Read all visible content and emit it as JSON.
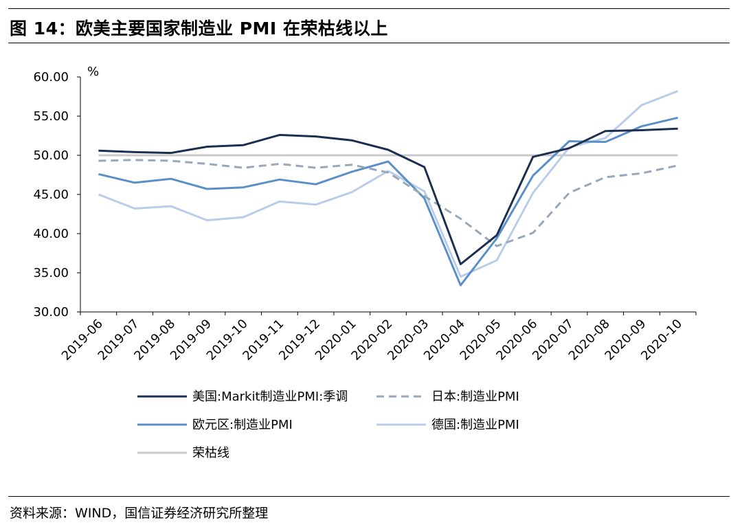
{
  "header": {
    "title": "图 14：欧美主要国家制造业 PMI 在荣枯线以上"
  },
  "footer": {
    "source": "资料来源：WIND，国信证券经济研究所整理"
  },
  "chart_data": {
    "type": "line",
    "ylabel": "%",
    "ylim": [
      30,
      60
    ],
    "yticks": [
      "30.00",
      "35.00",
      "40.00",
      "45.00",
      "50.00",
      "55.00",
      "60.00"
    ],
    "categories": [
      "2019-06",
      "2019-07",
      "2019-08",
      "2019-09",
      "2019-10",
      "2019-11",
      "2019-12",
      "2020-01",
      "2020-02",
      "2020-03",
      "2020-04",
      "2020-05",
      "2020-06",
      "2020-07",
      "2020-08",
      "2020-09",
      "2020-10"
    ],
    "grid": false,
    "legend_position": "bottom",
    "series": [
      {
        "name": "美国:Markit制造业PMI:季调",
        "color": "#1b2f50",
        "style": "solid",
        "values": [
          50.6,
          50.4,
          50.3,
          51.1,
          51.3,
          52.6,
          52.4,
          51.9,
          50.7,
          48.5,
          36.1,
          39.8,
          49.8,
          50.9,
          53.1,
          53.2,
          53.4
        ]
      },
      {
        "name": "日本:制造业PMI",
        "color": "#97a8ba",
        "style": "dashed",
        "values": [
          49.3,
          49.4,
          49.3,
          48.9,
          48.4,
          48.9,
          48.4,
          48.8,
          47.8,
          44.8,
          41.9,
          38.4,
          40.1,
          45.2,
          47.2,
          47.7,
          48.7
        ]
      },
      {
        "name": "欧元区:制造业PMI",
        "color": "#5b8fc7",
        "style": "solid",
        "values": [
          47.6,
          46.5,
          47.0,
          45.7,
          45.9,
          46.9,
          46.3,
          47.9,
          49.2,
          44.5,
          33.4,
          39.4,
          47.4,
          51.8,
          51.7,
          53.7,
          54.8
        ]
      },
      {
        "name": "德国:制造业PMI",
        "color": "#b9cde8",
        "style": "solid",
        "values": [
          45.0,
          43.2,
          43.5,
          41.7,
          42.1,
          44.1,
          43.7,
          45.3,
          48.0,
          45.4,
          34.5,
          36.6,
          45.2,
          51.0,
          52.2,
          56.4,
          58.2
        ]
      },
      {
        "name": "荣枯线",
        "color": "#c9c9c9",
        "style": "solid",
        "values": [
          50,
          50,
          50,
          50,
          50,
          50,
          50,
          50,
          50,
          50,
          50,
          50,
          50,
          50,
          50,
          50,
          50
        ]
      }
    ]
  }
}
